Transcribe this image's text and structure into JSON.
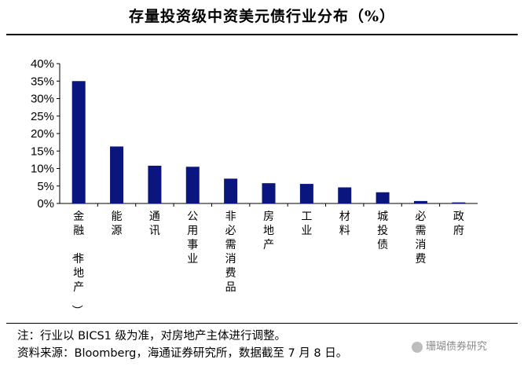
{
  "header": {
    "title": "存量投资级中资美元债行业分布（%）"
  },
  "notes": {
    "line1": "注：行业以 BICS1 级为准，对房地产主体进行调整。",
    "line2": "资料来源：Bloomberg，海通证券研究所，数据截至 7 月 8 日。"
  },
  "watermark": {
    "text": "珊瑚债券研究"
  },
  "colors": {
    "bar": "#0b1580",
    "axis": "#000000"
  },
  "chart_data": {
    "type": "bar",
    "categories": [
      "金融（非地产）",
      "能源",
      "通讯",
      "公用事业",
      "非必需消费品",
      "房地产",
      "工业",
      "材料",
      "城投债",
      "必需消费",
      "政府"
    ],
    "values": [
      35.0,
      16.3,
      10.8,
      10.5,
      7.1,
      5.8,
      5.6,
      4.6,
      3.2,
      0.7,
      0.3
    ],
    "ylim": [
      0,
      40
    ],
    "yticks": [
      0,
      5,
      10,
      15,
      20,
      25,
      30,
      35,
      40
    ],
    "ytick_labels": [
      "0%",
      "5%",
      "10%",
      "15%",
      "20%",
      "25%",
      "30%",
      "35%",
      "40%"
    ],
    "title": "",
    "xlabel": "",
    "ylabel": "",
    "grid": false,
    "legend": "none"
  }
}
